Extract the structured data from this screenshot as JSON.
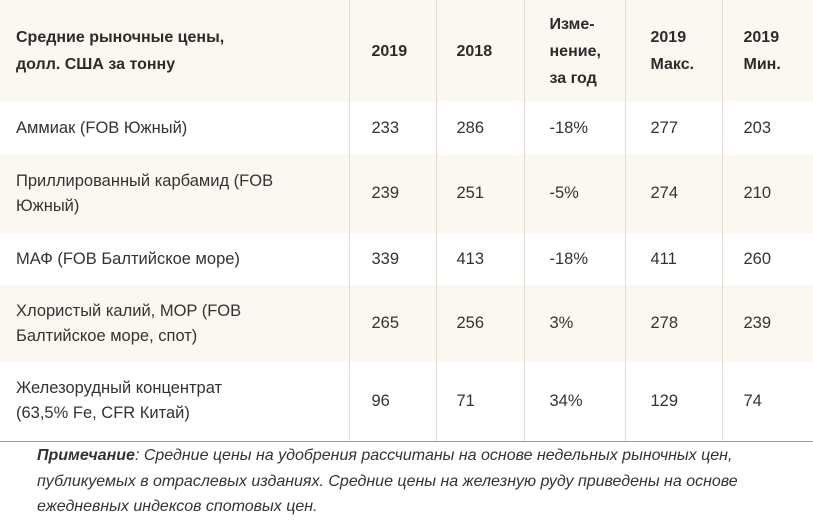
{
  "table": {
    "header": {
      "title_line1": "Средние рыночные цены,",
      "title_line2": "долл. США за тонну",
      "col_2019": "2019",
      "col_2018": "2018",
      "col_change_line1": "Изме-",
      "col_change_line2": "нение,",
      "col_change_line3": "за год",
      "col_max_line1": "2019",
      "col_max_line2": "Макс.",
      "col_min_line1": "2019",
      "col_min_line2": "Мин."
    },
    "rows": [
      {
        "name_line1": "Аммиак (FOB Южный)",
        "name_line2": "",
        "v2019": "233",
        "v2018": "286",
        "change": "-18%",
        "max": "277",
        "min": "203"
      },
      {
        "name_line1": "Приллированный карбамид (FOB",
        "name_line2": "Южный)",
        "v2019": "239",
        "v2018": "251",
        "change": "-5%",
        "max": "274",
        "min": "210"
      },
      {
        "name_line1": "МАФ (FOB Балтийское море)",
        "name_line2": "",
        "v2019": "339",
        "v2018": "413",
        "change": "-18%",
        "max": "411",
        "min": "260"
      },
      {
        "name_line1": "Хлористый калий, MOP (FOB",
        "name_line2": "Балтийское море, спот)",
        "v2019": "265",
        "v2018": "256",
        "change": "3%",
        "max": "278",
        "min": "239"
      },
      {
        "name_line1": "Железорудный концентрат",
        "name_line2": "(63,5% Fe, CFR Китай)",
        "v2019": "96",
        "v2018": "71",
        "change": "34%",
        "max": "129",
        "min": "74"
      }
    ]
  },
  "note": {
    "label": "Примечание",
    "text": ": Средние цены на удобрения рассчитаны на основе недельных рыночных цен, публикуемых в отраслевых изданиях. Средние цены на железную руду приведены на основе ежедневных индексов спотовых цен."
  }
}
